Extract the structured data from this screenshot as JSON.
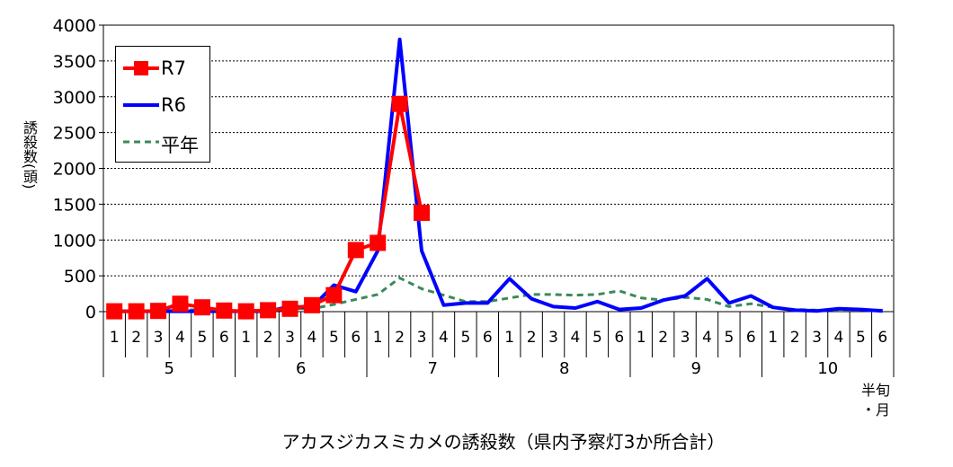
{
  "chart_data": {
    "type": "line",
    "title": "",
    "caption": "アカスジカスミカメの誘殺数（県内予察灯3か所合計）",
    "ylabel": "誘殺数(頭)",
    "xlabel_corner": [
      "半旬",
      "・月"
    ],
    "ylim": [
      0,
      4000
    ],
    "yticks": [
      0,
      500,
      1000,
      1500,
      2000,
      2500,
      3000,
      3500,
      4000
    ],
    "grid": true,
    "legend_position": "top-left",
    "periods": [
      "1",
      "2",
      "3",
      "4",
      "5",
      "6",
      "1",
      "2",
      "3",
      "4",
      "5",
      "6",
      "1",
      "2",
      "3",
      "4",
      "5",
      "6",
      "1",
      "2",
      "3",
      "4",
      "5",
      "6",
      "1",
      "2",
      "3",
      "4",
      "5",
      "6",
      "1",
      "2",
      "3",
      "4",
      "5",
      "6"
    ],
    "months": [
      "5",
      "6",
      "7",
      "8",
      "9",
      "10"
    ],
    "series": [
      {
        "name": "R7",
        "color": "#ff0000",
        "style": "solid-square",
        "values": [
          5,
          5,
          10,
          110,
          60,
          15,
          5,
          20,
          40,
          90,
          230,
          860,
          960,
          2900,
          1380,
          null,
          null,
          null,
          null,
          null,
          null,
          null,
          null,
          null,
          null,
          null,
          null,
          null,
          null,
          null,
          null,
          null,
          null,
          null,
          null,
          null
        ]
      },
      {
        "name": "R6",
        "color": "#0000ff",
        "style": "solid",
        "values": [
          5,
          5,
          5,
          5,
          5,
          5,
          5,
          5,
          70,
          60,
          370,
          280,
          850,
          3800,
          850,
          90,
          120,
          120,
          460,
          180,
          70,
          50,
          140,
          30,
          50,
          160,
          220,
          460,
          120,
          220,
          60,
          20,
          10,
          40,
          30,
          10
        ]
      },
      {
        "name": "平年",
        "color": "#3a8a5a",
        "style": "dashed",
        "values": [
          5,
          10,
          10,
          20,
          30,
          10,
          10,
          20,
          40,
          40,
          100,
          170,
          240,
          470,
          320,
          230,
          140,
          140,
          190,
          240,
          240,
          230,
          240,
          290,
          190,
          160,
          200,
          170,
          70,
          110,
          60,
          30,
          20,
          20,
          20,
          20
        ]
      }
    ]
  }
}
